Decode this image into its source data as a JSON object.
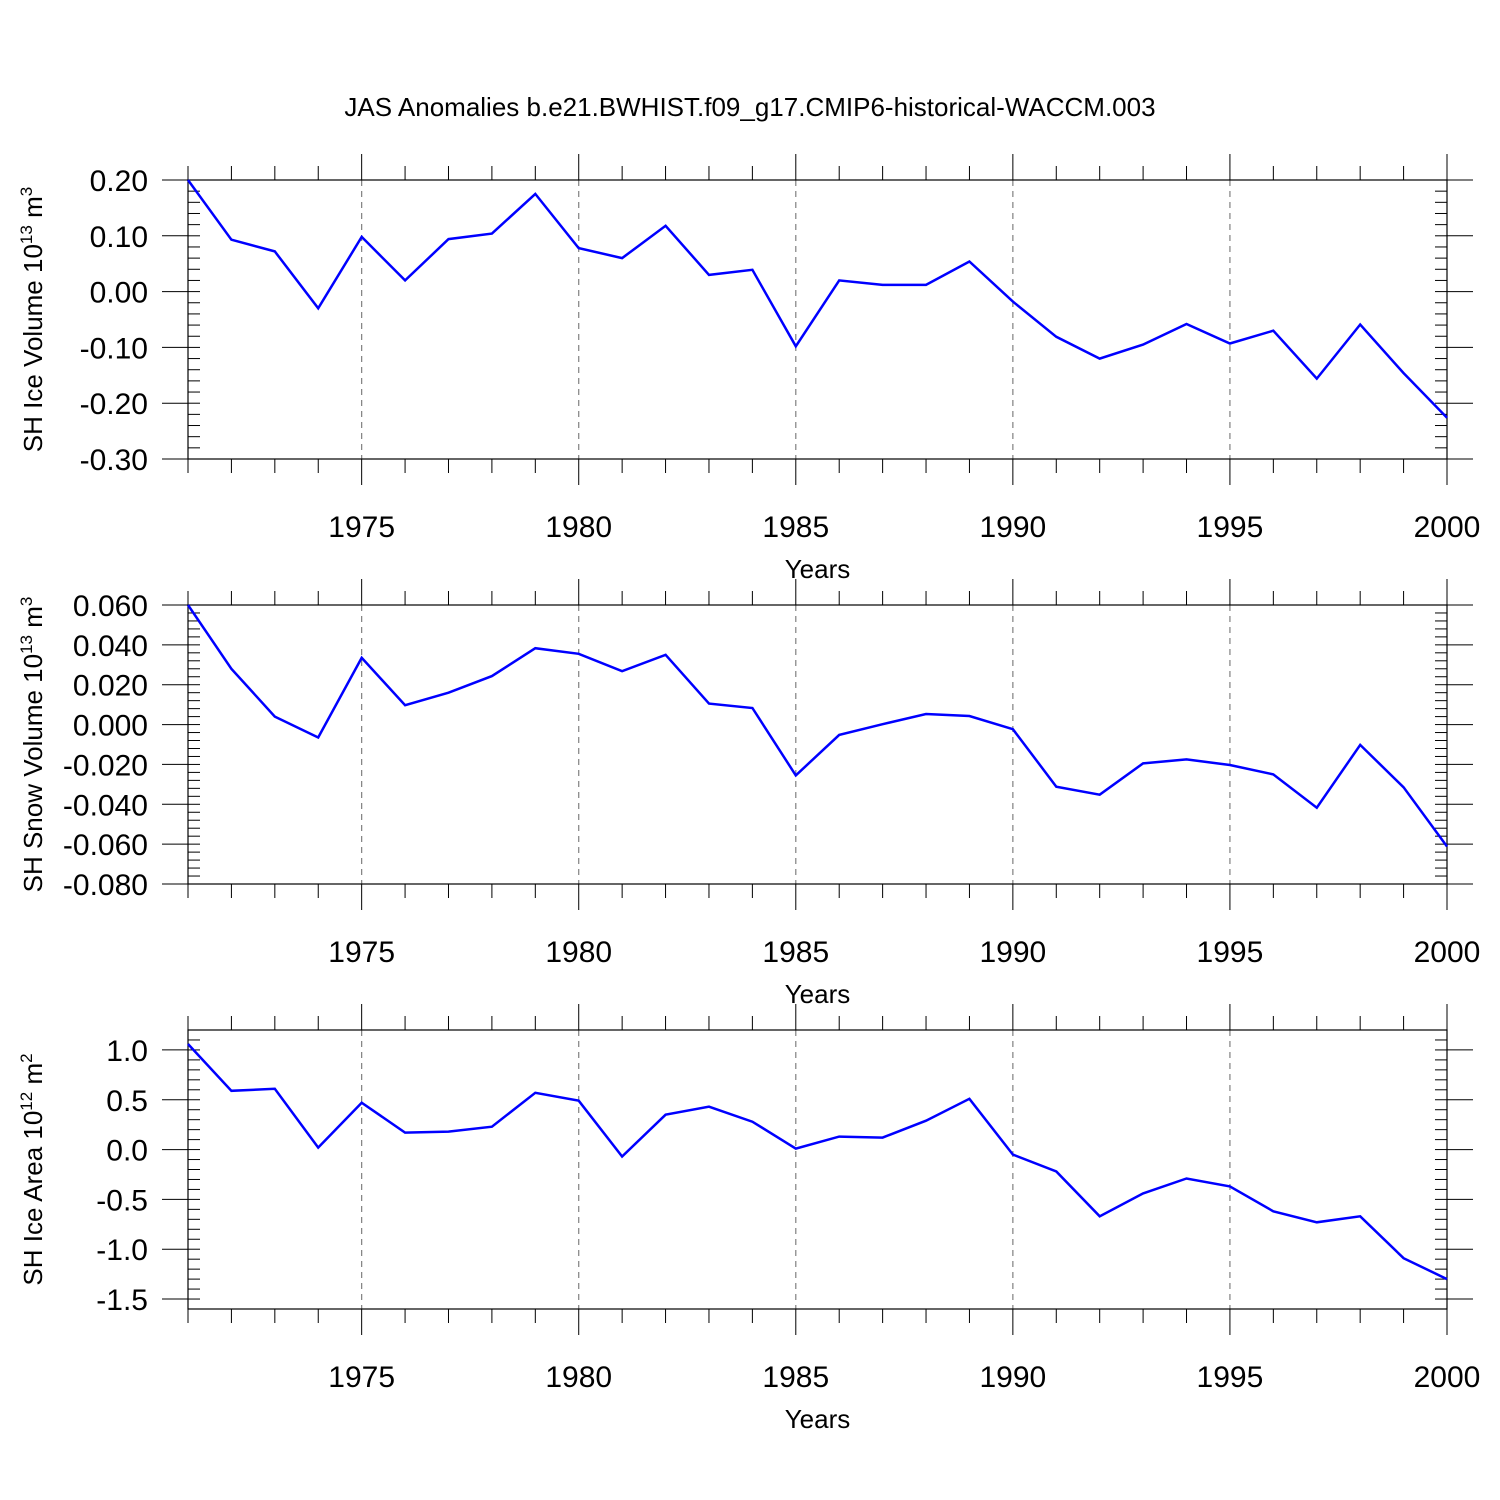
{
  "title": "JAS Anomalies b.e21.BWHIST.f09_g17.CMIP6-historical-WACCM.003",
  "colors": {
    "series": "#0000ff",
    "axis": "#000000",
    "grid": "#808080",
    "background": "#ffffff"
  },
  "chart_data": [
    {
      "type": "line",
      "ylabel_main": "SH Ice Volume 10",
      "ylabel_exp": "13",
      "ylabel_unit": "m",
      "ylabel_unit_exp": "3",
      "xlabel": "Years",
      "xlim": [
        1971,
        2000
      ],
      "ylim": [
        -0.3,
        0.2
      ],
      "yticks": [
        -0.3,
        -0.2,
        -0.1,
        0.0,
        0.1,
        0.2
      ],
      "yticklabels": [
        "-0.30",
        "-0.20",
        "-0.10",
        "0.00",
        "0.10",
        "0.20"
      ],
      "xticks": [
        1975,
        1980,
        1985,
        1990,
        1995,
        2000
      ],
      "xticklabels": [
        "1975",
        "1980",
        "1985",
        "1990",
        "1995",
        "2000"
      ],
      "grid": "vertical dashed at major x ticks",
      "x": [
        1971,
        1972,
        1973,
        1974,
        1975,
        1976,
        1977,
        1978,
        1979,
        1980,
        1981,
        1982,
        1983,
        1984,
        1985,
        1986,
        1987,
        1988,
        1989,
        1990,
        1991,
        1992,
        1993,
        1994,
        1995,
        1996,
        1997,
        1998,
        1999,
        2000
      ],
      "y": [
        0.2,
        0.093,
        0.072,
        -0.03,
        0.098,
        0.02,
        0.094,
        0.104,
        0.175,
        0.078,
        0.06,
        0.118,
        0.03,
        0.039,
        -0.098,
        0.02,
        0.012,
        0.012,
        0.054,
        -0.018,
        -0.081,
        -0.12,
        -0.095,
        -0.058,
        -0.093,
        -0.07,
        -0.156,
        -0.059,
        -0.146,
        -0.226
      ]
    },
    {
      "type": "line",
      "ylabel_main": "SH Snow Volume 10",
      "ylabel_exp": "13",
      "ylabel_unit": "m",
      "ylabel_unit_exp": "3",
      "xlabel": "Years",
      "xlim": [
        1971,
        2000
      ],
      "ylim": [
        -0.08,
        0.06
      ],
      "yticks": [
        -0.08,
        -0.06,
        -0.04,
        -0.02,
        0.0,
        0.02,
        0.04,
        0.06
      ],
      "yticklabels": [
        "-0.080",
        "-0.060",
        "-0.040",
        "-0.020",
        "0.000",
        "0.020",
        "0.040",
        "0.060"
      ],
      "xticks": [
        1975,
        1980,
        1985,
        1990,
        1995,
        2000
      ],
      "xticklabels": [
        "1975",
        "1980",
        "1985",
        "1990",
        "1995",
        "2000"
      ],
      "grid": "vertical dashed at major x ticks",
      "x": [
        1971,
        1972,
        1973,
        1974,
        1975,
        1976,
        1977,
        1978,
        1979,
        1980,
        1981,
        1982,
        1983,
        1984,
        1985,
        1986,
        1987,
        1988,
        1989,
        1990,
        1991,
        1992,
        1993,
        1994,
        1995,
        1996,
        1997,
        1998,
        1999,
        2000
      ],
      "y": [
        0.06,
        0.028,
        0.004,
        -0.0065,
        0.0335,
        0.0097,
        0.016,
        0.0243,
        0.0383,
        0.0355,
        0.0268,
        0.035,
        0.0105,
        0.0083,
        -0.0255,
        -0.0052,
        0.0002,
        0.0053,
        0.0043,
        -0.0023,
        -0.0312,
        -0.0352,
        -0.0195,
        -0.0175,
        -0.0203,
        -0.025,
        -0.0417,
        -0.0102,
        -0.0315,
        -0.0612
      ]
    },
    {
      "type": "line",
      "ylabel_main": "SH Ice Area 10",
      "ylabel_exp": "12",
      "ylabel_unit": "m",
      "ylabel_unit_exp": "2",
      "xlabel": "Years",
      "xlim": [
        1971,
        2000
      ],
      "ylim": [
        -1.6,
        1.2
      ],
      "yticks": [
        -1.5,
        -1.0,
        -0.5,
        0.0,
        0.5,
        1.0
      ],
      "yticklabels": [
        "-1.5",
        "-1.0",
        "-0.5",
        "0.0",
        "0.5",
        "1.0"
      ],
      "xticks": [
        1975,
        1980,
        1985,
        1990,
        1995,
        2000
      ],
      "xticklabels": [
        "1975",
        "1980",
        "1985",
        "1990",
        "1995",
        "2000"
      ],
      "grid": "vertical dashed at major x ticks",
      "x": [
        1971,
        1972,
        1973,
        1974,
        1975,
        1976,
        1977,
        1978,
        1979,
        1980,
        1981,
        1982,
        1983,
        1984,
        1985,
        1986,
        1987,
        1988,
        1989,
        1990,
        1991,
        1992,
        1993,
        1994,
        1995,
        1996,
        1997,
        1998,
        1999,
        2000
      ],
      "y": [
        1.06,
        0.59,
        0.61,
        0.02,
        0.47,
        0.17,
        0.18,
        0.23,
        0.57,
        0.49,
        -0.07,
        0.35,
        0.43,
        0.28,
        0.01,
        0.13,
        0.12,
        0.29,
        0.51,
        -0.05,
        -0.22,
        -0.67,
        -0.44,
        -0.29,
        -0.37,
        -0.62,
        -0.73,
        -0.67,
        -1.09,
        -1.3
      ]
    }
  ]
}
